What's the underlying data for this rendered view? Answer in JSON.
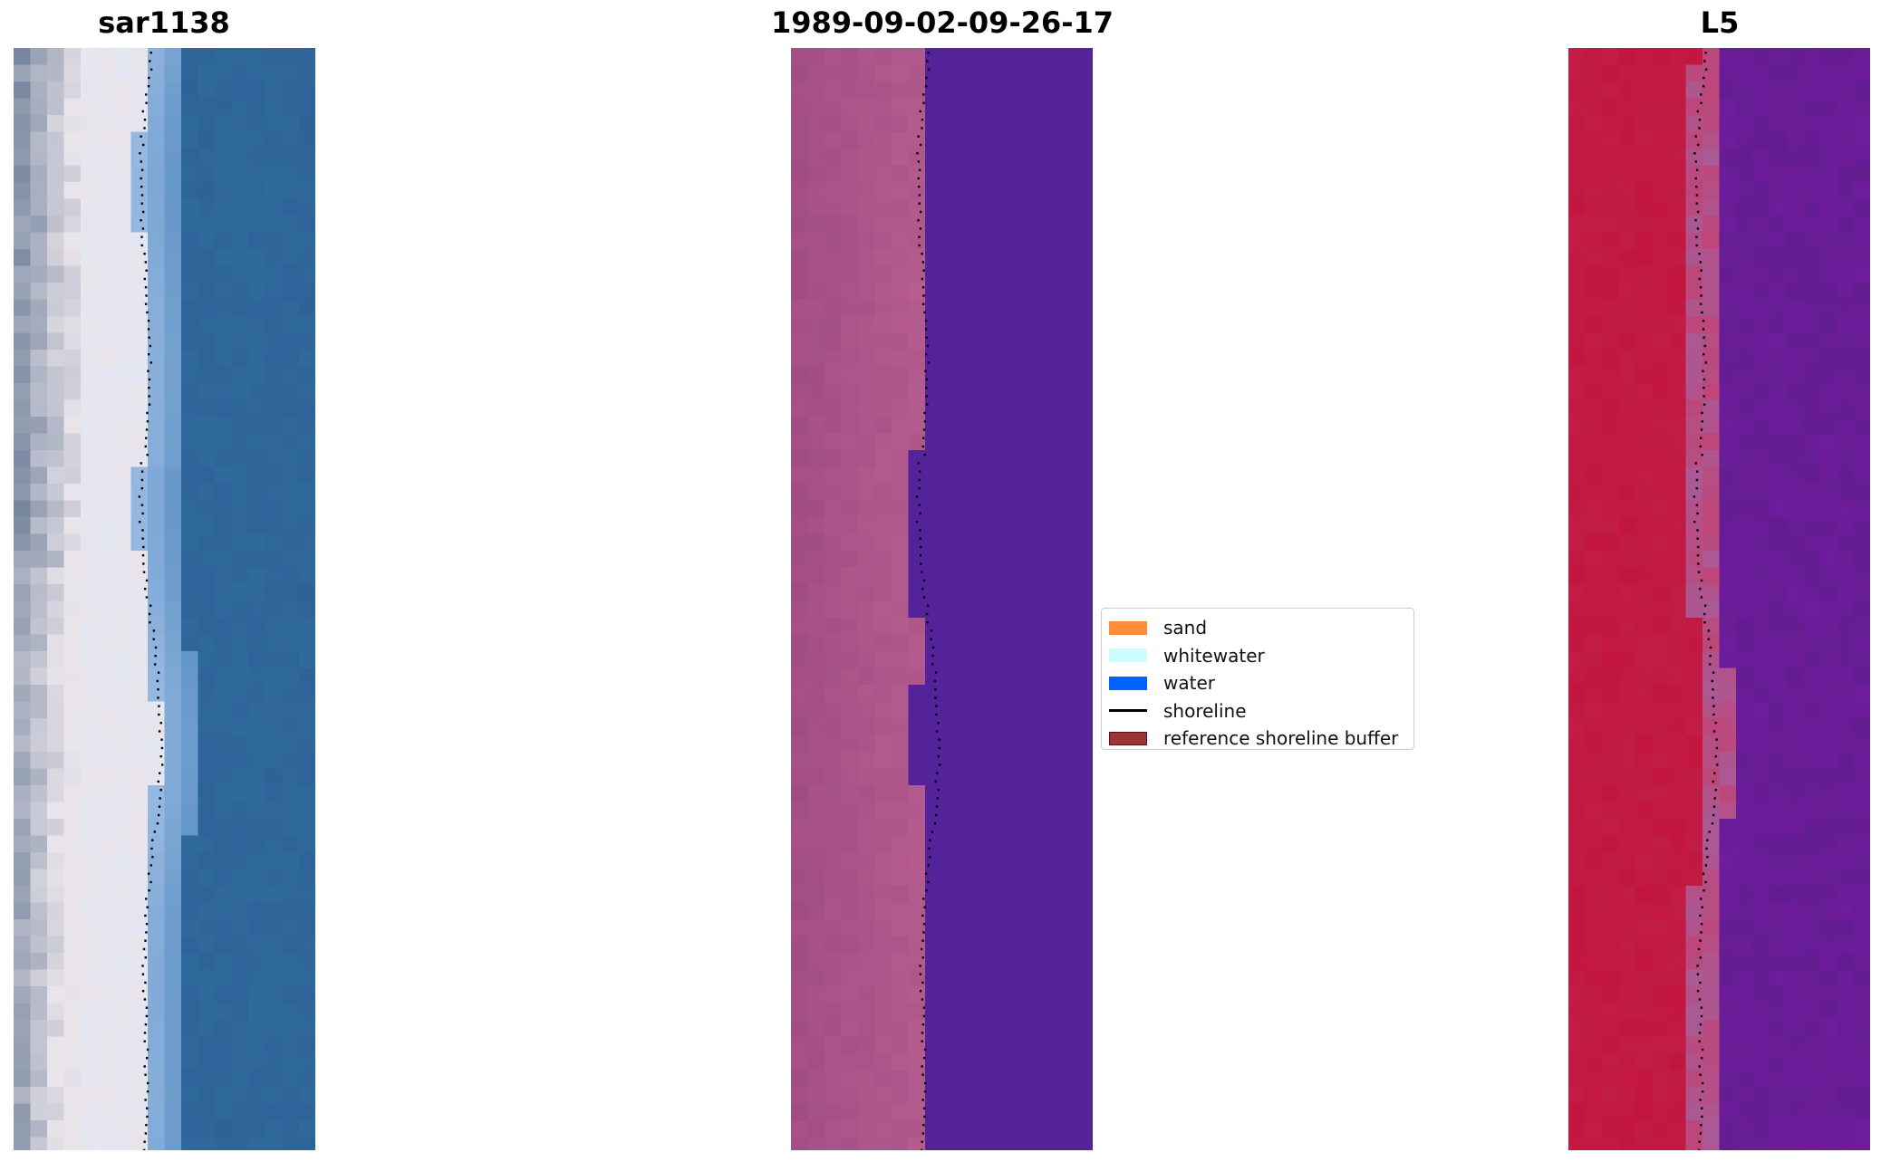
{
  "panels": [
    {
      "title": "sar1138",
      "kind": "rgb"
    },
    {
      "title": "1989-09-02-09-26-17",
      "kind": "class"
    },
    {
      "title": "L5",
      "kind": "mndwi"
    }
  ],
  "legend": {
    "items": [
      {
        "label": "sand",
        "color": "#ff8c3a",
        "type": "patch"
      },
      {
        "label": "whitewater",
        "color": "#ccfdff",
        "type": "patch"
      },
      {
        "label": "water",
        "color": "#0062ff",
        "type": "patch"
      },
      {
        "label": "shoreline",
        "color": "#000000",
        "type": "line"
      },
      {
        "label": "reference shoreline buffer",
        "color": "#9a3535",
        "type": "patch"
      }
    ]
  },
  "colors": {
    "rgb_water": "#2f6a9c",
    "rgb_sand": "#e9e4ea",
    "class_land": "#a24d84",
    "class_water": "#54239a",
    "mndwi_land": "#c3163f",
    "mndwi_water": "#6d1c9c"
  }
}
